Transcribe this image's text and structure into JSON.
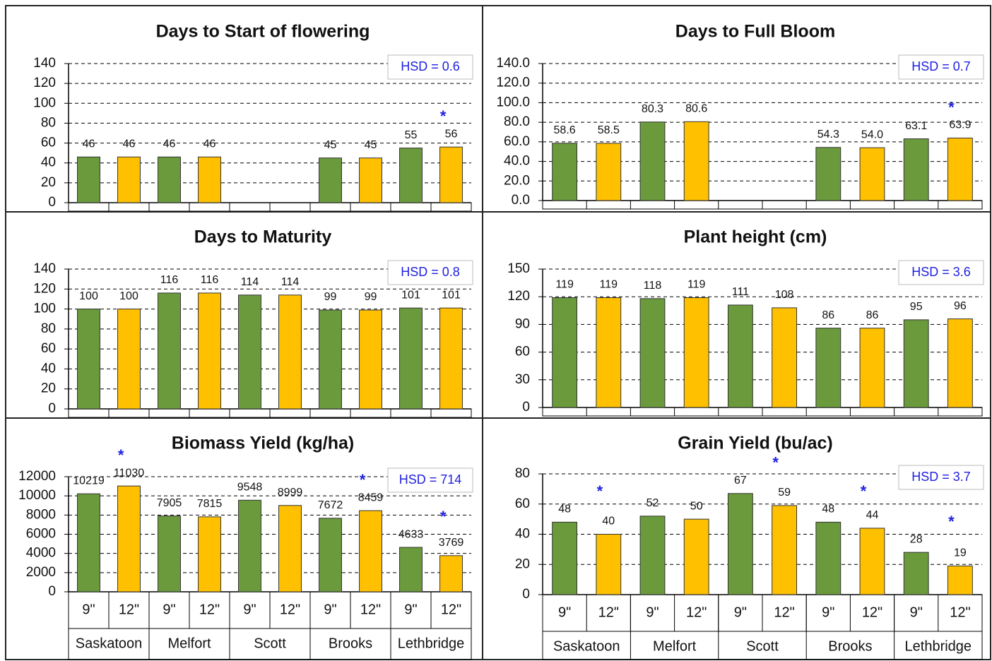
{
  "chart_data": [
    {
      "type": "bar",
      "title": "Days to Start of flowering",
      "annotation": "HSD = 0.6",
      "categories": [
        null,
        null,
        null,
        null,
        null
      ],
      "series": [
        {
          "color": "#6a9a3c",
          "values": [
            46,
            46,
            null,
            45,
            55
          ]
        },
        {
          "color": "#ffc000",
          "values": [
            46,
            46,
            null,
            45,
            56
          ]
        }
      ],
      "ylim": [
        0,
        140
      ],
      "yticks": [
        0,
        20,
        40,
        60,
        80,
        100,
        120,
        140
      ],
      "grid": true,
      "significance_marker": "*",
      "significant": [
        false,
        false,
        false,
        false,
        true
      ]
    },
    {
      "type": "bar",
      "title": "Days to Full Bloom",
      "annotation": "HSD = 0.7",
      "categories": [
        null,
        null,
        null,
        null,
        null
      ],
      "series": [
        {
          "color": "#6a9a3c",
          "values": [
            58.6,
            80.3,
            null,
            54.3,
            63.1
          ],
          "value_labels": [
            "58.6",
            "80.3",
            null,
            "54.3",
            "63.1"
          ]
        },
        {
          "color": "#ffc000",
          "values": [
            58.5,
            80.6,
            null,
            54.0,
            63.9
          ],
          "value_labels": [
            "58.5",
            "80.6",
            null,
            "54.0",
            "63.9"
          ]
        }
      ],
      "ylim": [
        0,
        140
      ],
      "yticks": [
        {
          "value": 0,
          "label": "0.0"
        },
        {
          "value": 20,
          "label": "20.0"
        },
        {
          "value": 40,
          "label": "40.0"
        },
        {
          "value": 60,
          "label": "60.0"
        },
        {
          "value": 80,
          "label": "80.0"
        },
        {
          "value": 100,
          "label": "100.0"
        },
        {
          "value": 120,
          "label": "120.0"
        },
        {
          "value": 140,
          "label": "140.0"
        }
      ],
      "grid": true,
      "significance_marker": "*",
      "significant": [
        false,
        false,
        false,
        false,
        true
      ]
    },
    {
      "type": "bar",
      "title": "Days to Maturity",
      "annotation": "HSD = 0.8",
      "categories": [
        null,
        null,
        null,
        null,
        null
      ],
      "series": [
        {
          "color": "#6a9a3c",
          "values": [
            100,
            116,
            114,
            99,
            101
          ]
        },
        {
          "color": "#ffc000",
          "values": [
            100,
            116,
            114,
            99,
            101
          ]
        }
      ],
      "ylim": [
        0,
        140
      ],
      "yticks": [
        0,
        20,
        40,
        60,
        80,
        100,
        120,
        140
      ],
      "grid": true,
      "significance_marker": "*",
      "significant": [
        false,
        false,
        false,
        false,
        false
      ]
    },
    {
      "type": "bar",
      "title": "Plant height  (cm)",
      "annotation": "HSD = 3.6",
      "categories": [
        null,
        null,
        null,
        null,
        null
      ],
      "series": [
        {
          "color": "#6a9a3c",
          "values": [
            119,
            118,
            111,
            86,
            95
          ]
        },
        {
          "color": "#ffc000",
          "values": [
            119,
            119,
            108,
            86,
            96
          ]
        }
      ],
      "ylim": [
        0,
        150
      ],
      "yticks": [
        0,
        30,
        60,
        90,
        120,
        150
      ],
      "grid": true,
      "significance_marker": "*",
      "significant": [
        false,
        false,
        false,
        false,
        false
      ]
    },
    {
      "type": "bar",
      "title": "Biomass Yield (kg/ha)",
      "annotation": "HSD = 714",
      "categories": [
        "Saskatoon",
        "Melfort",
        "Scott",
        "Brooks",
        "Lethbridge"
      ],
      "series": [
        {
          "name": "9\"",
          "color": "#6a9a3c",
          "values": [
            10219,
            7905,
            9548,
            7672,
            4633
          ]
        },
        {
          "name": "12\"",
          "color": "#ffc000",
          "values": [
            11030,
            7815,
            8999,
            8459,
            3769
          ]
        }
      ],
      "ylim": [
        0,
        12000
      ],
      "yticks": [
        0,
        2000,
        4000,
        6000,
        8000,
        10000,
        12000
      ],
      "grid": true,
      "significance_marker": "*",
      "significant": [
        true,
        false,
        false,
        true,
        true
      ]
    },
    {
      "type": "bar",
      "title": "Grain Yield (bu/ac)",
      "annotation": "HSD = 3.7",
      "categories": [
        "Saskatoon",
        "Melfort",
        "Scott",
        "Brooks",
        "Lethbridge"
      ],
      "series": [
        {
          "name": "9\"",
          "color": "#6a9a3c",
          "values": [
            48,
            52,
            67,
            48,
            28
          ]
        },
        {
          "name": "12\"",
          "color": "#ffc000",
          "values": [
            40,
            50,
            59,
            44,
            19
          ]
        }
      ],
      "ylim": [
        0,
        80
      ],
      "yticks": [
        0,
        20,
        40,
        60,
        80
      ],
      "grid": true,
      "significance_marker": "*",
      "significant": [
        true,
        false,
        true,
        true,
        true
      ]
    }
  ]
}
